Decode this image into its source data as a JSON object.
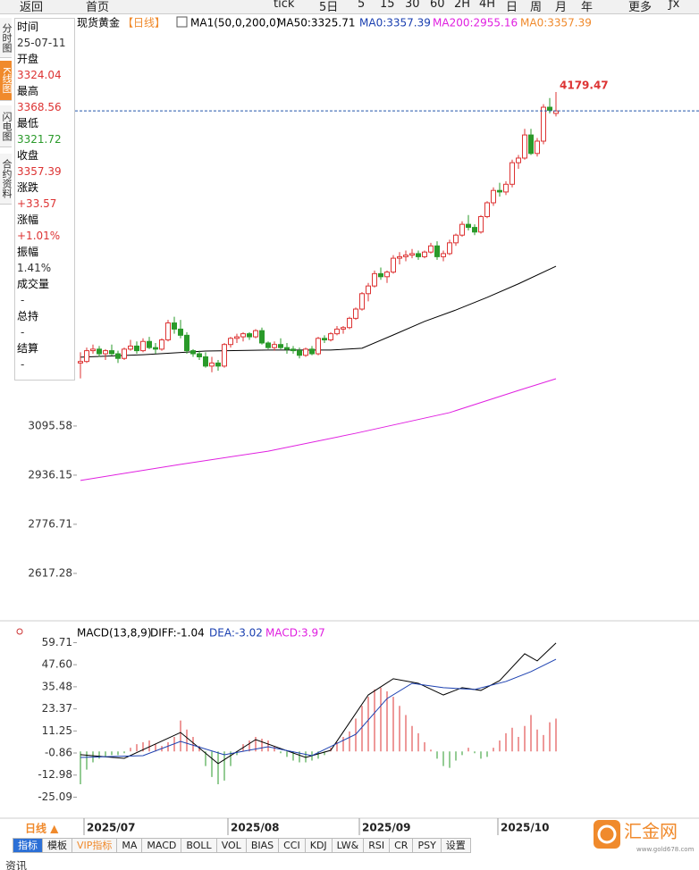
{
  "toolbar": {
    "items": [
      "返回",
      "首页",
      "tick",
      "5日",
      "5",
      "15",
      "30",
      "60",
      "2H",
      "4H",
      "日",
      "周",
      "月",
      "年",
      "更多",
      "ƒx"
    ]
  },
  "sidebar": {
    "tabs": [
      "分时图",
      "K线图",
      "闪电图",
      "合约资料"
    ]
  },
  "header": {
    "title": "现货黄金",
    "period": "【日线】",
    "indicators": [
      "MA1(50,0,200,0)",
      "MA50:3325.71",
      "MA0:3357.39",
      "MA200:2955.16",
      "MA0:3357.39"
    ]
  },
  "info_panel": {
    "items": [
      {
        "label": "时间",
        "value": "25-07-11"
      },
      {
        "label": "开盘",
        "value": "3324.04"
      },
      {
        "label": "最高",
        "value": "3368.56"
      },
      {
        "label": "最低",
        "value": "3321.72"
      },
      {
        "label": "收盘",
        "value": "3357.39"
      },
      {
        "label": "涨跌",
        "value": "+33.57"
      },
      {
        "label": "涨幅",
        "value": "+1.01%"
      },
      {
        "label": "振幅",
        "value": "1.41%"
      },
      {
        "label": "成交量",
        "value": "-"
      },
      {
        "label": "总持",
        "value": "-"
      },
      {
        "label": "结算",
        "value": "-"
      }
    ]
  },
  "price_chart": {
    "ylim": [
      2478,
      4362
    ],
    "yticks": [
      3095.58,
      2936.15,
      2776.71,
      2617.28
    ],
    "candles": [
      [
        3300,
        3335,
        3250,
        3305
      ],
      [
        3305,
        3350,
        3300,
        3340
      ],
      [
        3340,
        3360,
        3330,
        3345
      ],
      [
        3345,
        3355,
        3320,
        3330
      ],
      [
        3330,
        3345,
        3310,
        3340
      ],
      [
        3340,
        3360,
        3325,
        3330
      ],
      [
        3330,
        3340,
        3300,
        3315
      ],
      [
        3315,
        3350,
        3310,
        3345
      ],
      [
        3345,
        3375,
        3340,
        3355
      ],
      [
        3355,
        3370,
        3330,
        3340
      ],
      [
        3340,
        3380,
        3335,
        3370
      ],
      [
        3370,
        3385,
        3345,
        3350
      ],
      [
        3350,
        3365,
        3330,
        3345
      ],
      [
        3345,
        3380,
        3340,
        3375
      ],
      [
        3375,
        3440,
        3370,
        3430
      ],
      [
        3430,
        3450,
        3395,
        3410
      ],
      [
        3410,
        3440,
        3380,
        3390
      ],
      [
        3390,
        3400,
        3330,
        3340
      ],
      [
        3340,
        3345,
        3320,
        3330
      ],
      [
        3330,
        3340,
        3310,
        3320
      ],
      [
        3320,
        3335,
        3285,
        3290
      ],
      [
        3290,
        3320,
        3270,
        3300
      ],
      [
        3300,
        3310,
        3275,
        3290
      ],
      [
        3290,
        3365,
        3285,
        3360
      ],
      [
        3360,
        3385,
        3350,
        3380
      ],
      [
        3380,
        3395,
        3365,
        3385
      ],
      [
        3385,
        3400,
        3370,
        3395
      ],
      [
        3395,
        3400,
        3375,
        3385
      ],
      [
        3385,
        3410,
        3380,
        3405
      ],
      [
        3405,
        3415,
        3360,
        3365
      ],
      [
        3365,
        3370,
        3345,
        3350
      ],
      [
        3350,
        3370,
        3340,
        3360
      ],
      [
        3360,
        3380,
        3345,
        3350
      ],
      [
        3350,
        3365,
        3330,
        3345
      ],
      [
        3345,
        3355,
        3330,
        3340
      ],
      [
        3340,
        3350,
        3315,
        3325
      ],
      [
        3325,
        3350,
        3320,
        3345
      ],
      [
        3345,
        3355,
        3325,
        3330
      ],
      [
        3330,
        3385,
        3325,
        3380
      ],
      [
        3380,
        3390,
        3365,
        3375
      ],
      [
        3375,
        3400,
        3370,
        3395
      ],
      [
        3395,
        3420,
        3390,
        3410
      ],
      [
        3410,
        3420,
        3395,
        3415
      ],
      [
        3415,
        3450,
        3410,
        3445
      ],
      [
        3445,
        3480,
        3440,
        3475
      ],
      [
        3475,
        3530,
        3470,
        3525
      ],
      [
        3525,
        3560,
        3500,
        3550
      ],
      [
        3550,
        3600,
        3545,
        3590
      ],
      [
        3590,
        3610,
        3570,
        3580
      ],
      [
        3580,
        3600,
        3560,
        3595
      ],
      [
        3595,
        3650,
        3590,
        3640
      ],
      [
        3640,
        3660,
        3620,
        3645
      ],
      [
        3645,
        3665,
        3630,
        3650
      ],
      [
        3650,
        3670,
        3640,
        3655
      ],
      [
        3655,
        3665,
        3635,
        3645
      ],
      [
        3645,
        3665,
        3640,
        3660
      ],
      [
        3660,
        3690,
        3655,
        3680
      ],
      [
        3680,
        3695,
        3635,
        3645
      ],
      [
        3645,
        3665,
        3630,
        3655
      ],
      [
        3655,
        3700,
        3650,
        3690
      ],
      [
        3690,
        3720,
        3680,
        3715
      ],
      [
        3715,
        3760,
        3710,
        3750
      ],
      [
        3750,
        3780,
        3730,
        3740
      ],
      [
        3740,
        3750,
        3715,
        3725
      ],
      [
        3725,
        3780,
        3720,
        3775
      ],
      [
        3775,
        3825,
        3770,
        3820
      ],
      [
        3820,
        3870,
        3810,
        3860
      ],
      [
        3860,
        3885,
        3840,
        3855
      ],
      [
        3855,
        3890,
        3845,
        3880
      ],
      [
        3880,
        3960,
        3870,
        3950
      ],
      [
        3950,
        3975,
        3930,
        3965
      ],
      [
        3965,
        4060,
        3960,
        4040
      ],
      [
        4040,
        4060,
        3975,
        3980
      ],
      [
        3980,
        4030,
        3970,
        4020
      ],
      [
        4020,
        4140,
        4010,
        4130
      ],
      [
        4130,
        4160,
        4110,
        4120
      ],
      [
        4110,
        4179.47,
        4100,
        4118
      ]
    ],
    "lines": [
      {
        "color": "#000000",
        "x": [
          0,
          10,
          20,
          30,
          40,
          45,
          50,
          55,
          60,
          65,
          70,
          76
        ],
        "values": [
          3319,
          3327,
          3339,
          3342,
          3342,
          3348,
          3391,
          3435,
          3472,
          3513,
          3557,
          3614
        ]
      },
      {
        "color": "#e020e0",
        "x": [
          0,
          16,
          30,
          44,
          59,
          70,
          76
        ],
        "values": [
          2919,
          2971,
          3014,
          3072,
          3139,
          3211,
          3249
        ]
      }
    ]
  },
  "macd_panel": {
    "title": "MACD(13,8,9)",
    "diff": "DIFF:-1.04",
    "dea": "DEA:-3.02",
    "macd": "MACD:3.97",
    "ylim": [
      -33.7,
      61.9
    ],
    "yticks": [
      59.71,
      {
        "value": 47.6,
        "label": "47.60"
      },
      35.48,
      23.37,
      11.25,
      -0.86,
      -12.98,
      -25.09
    ],
    "diff_line": {
      "color": "#000000",
      "x": [
        0,
        7,
        16,
        22,
        28,
        36,
        40,
        46,
        50,
        54,
        58,
        61,
        64,
        67,
        71,
        73,
        76
      ],
      "values": [
        -1.8,
        -3.8,
        10.4,
        -6.7,
        6.5,
        -3.3,
        0.6,
        31,
        39.9,
        37.4,
        31,
        35,
        33.5,
        38.9,
        53.6,
        49.7,
        59.5
      ]
    },
    "dea_line": {
      "color": "#1a3fb0",
      "x": [
        0,
        10,
        16,
        23,
        30,
        37,
        44,
        49,
        53,
        58,
        63,
        68,
        72,
        76
      ],
      "values": [
        -3.3,
        -2.3,
        5.5,
        -1.8,
        2.6,
        -2.3,
        9.4,
        29,
        37.4,
        35,
        34,
        38.4,
        43.8,
        50.6
      ]
    },
    "histogram": [
      -18,
      -10,
      -6,
      -4,
      -3,
      -2,
      -2,
      -1,
      2,
      4,
      5,
      6,
      4,
      3,
      5,
      8,
      17,
      12,
      8,
      3,
      -8,
      -14,
      -18,
      -16,
      -8,
      -2,
      4,
      6,
      8,
      7,
      6,
      3,
      -1,
      -3,
      -5,
      -6,
      -6,
      -5,
      -4,
      -2,
      2,
      5,
      8,
      11,
      18,
      25,
      30,
      34,
      35,
      33,
      30,
      25,
      20,
      14,
      10,
      5,
      1,
      -4,
      -8,
      -9,
      -5,
      -2,
      2,
      -1,
      -4,
      -3,
      2,
      6,
      10,
      13,
      8,
      14,
      20,
      12,
      9,
      16,
      18
    ]
  },
  "date_axis": {
    "period_button": "日线 ▲",
    "labels": [
      "2025/07",
      "2025/08",
      "2025/09",
      "2025/10"
    ]
  },
  "tabs": [
    "指标",
    "模板",
    "VIP指标",
    "MA",
    "MACD",
    "BOLL",
    "VOL",
    "BIAS",
    "CCI",
    "KDJ",
    "LW&",
    "RSI",
    "CR",
    "PSY",
    "设置"
  ],
  "logo": {
    "name": "汇金网",
    "url": "www.gold678.com"
  },
  "footer": "资讯"
}
